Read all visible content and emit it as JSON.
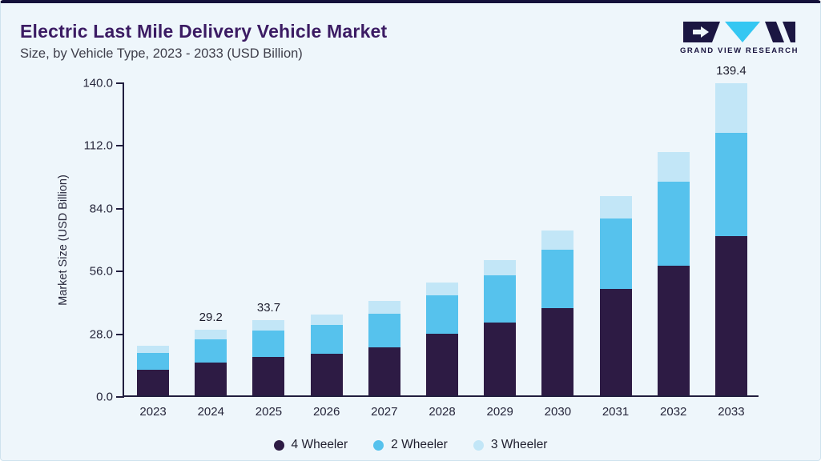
{
  "header": {
    "logo_text": "GRAND VIEW RESEARCH"
  },
  "colors": {
    "background": "#eef6fb",
    "top_border": "#14113a",
    "title": "#3b1b63",
    "axis": "#211e3f",
    "logo_dark": "#1b1642",
    "logo_cyan": "#35c7f2"
  },
  "chart_data": {
    "type": "bar",
    "stacked": true,
    "title": "Electric Last Mile Delivery Vehicle Market",
    "subtitle": "Size, by Vehicle Type, 2023 - 2033 (USD Billion)",
    "ylabel": "Market Size (USD Billion)",
    "xlabel": "",
    "ylim": [
      0,
      140
    ],
    "grid": false,
    "legend_position": "bottom",
    "yticks": [
      {
        "value": 0,
        "label": "0.0"
      },
      {
        "value": 28,
        "label": "28.0"
      },
      {
        "value": 56,
        "label": "56.0"
      },
      {
        "value": 84,
        "label": "84.0"
      },
      {
        "value": 112,
        "label": "112.0"
      },
      {
        "value": 140,
        "label": "140.0"
      }
    ],
    "categories": [
      "2023",
      "2024",
      "2025",
      "2026",
      "2027",
      "2028",
      "2029",
      "2030",
      "2031",
      "2032",
      "2033"
    ],
    "series": [
      {
        "name": "4 Wheeler",
        "color": "#2d1b44",
        "values": [
          11.5,
          14.8,
          17.0,
          18.5,
          21.5,
          27.5,
          32.5,
          39.0,
          47.5,
          58.0,
          71.0
        ]
      },
      {
        "name": "2 Wheeler",
        "color": "#56c2ed",
        "values": [
          7.5,
          10.2,
          12.0,
          13.0,
          15.0,
          17.0,
          21.0,
          26.0,
          31.5,
          37.5,
          46.0
        ]
      },
      {
        "name": "3 Wheeler",
        "color": "#c2e6f7",
        "values": [
          3.0,
          4.2,
          4.7,
          4.7,
          5.5,
          6.0,
          7.0,
          8.5,
          10.0,
          13.0,
          22.4
        ]
      }
    ],
    "totals": [
      22.0,
      29.2,
      33.7,
      36.2,
      42.0,
      50.5,
      60.5,
      73.5,
      89.0,
      108.5,
      139.4
    ],
    "annotations": [
      {
        "category": "2024",
        "label": "29.2"
      },
      {
        "category": "2025",
        "label": "33.7"
      },
      {
        "category": "2033",
        "label": "139.4"
      }
    ]
  }
}
